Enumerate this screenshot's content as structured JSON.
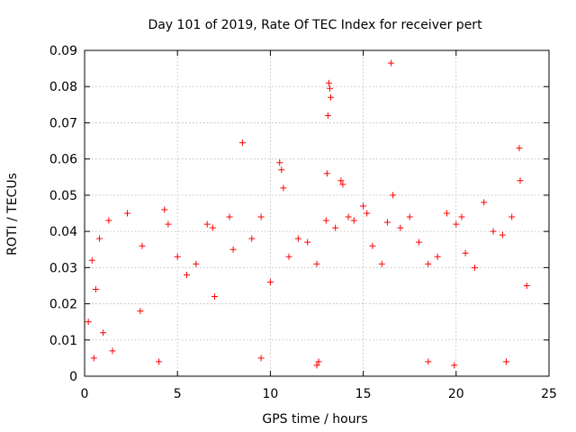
{
  "chart_data": {
    "type": "scatter",
    "title": "Day 101 of 2019, Rate Of TEC Index for receiver pert",
    "xlabel": "GPS time / hours",
    "ylabel": "ROTI / TECUs",
    "xlim": [
      0,
      25
    ],
    "ylim": [
      0,
      0.09
    ],
    "x_ticks": [
      "0",
      "5",
      "10",
      "15",
      "20",
      "25"
    ],
    "y_ticks": [
      "0",
      "0.01",
      "0.02",
      "0.03",
      "0.04",
      "0.05",
      "0.06",
      "0.07",
      "0.08",
      "0.09"
    ],
    "grid": true,
    "marker": "+",
    "color": "#ff0000",
    "series": [
      {
        "points": [
          [
            0.2,
            0.015
          ],
          [
            0.4,
            0.032
          ],
          [
            0.6,
            0.024
          ],
          [
            0.8,
            0.038
          ],
          [
            1.0,
            0.012
          ],
          [
            1.3,
            0.043
          ],
          [
            2.3,
            0.045
          ],
          [
            3.0,
            0.018
          ],
          [
            3.1,
            0.036
          ],
          [
            4.3,
            0.046
          ],
          [
            4.5,
            0.042
          ],
          [
            5.0,
            0.033
          ],
          [
            5.5,
            0.028
          ],
          [
            6.0,
            0.031
          ],
          [
            6.6,
            0.042
          ],
          [
            6.9,
            0.041
          ],
          [
            7.0,
            0.022
          ],
          [
            7.8,
            0.044
          ],
          [
            8.0,
            0.035
          ],
          [
            8.5,
            0.0645
          ],
          [
            9.0,
            0.038
          ],
          [
            9.5,
            0.044
          ],
          [
            10.0,
            0.026
          ],
          [
            10.5,
            0.059
          ],
          [
            10.6,
            0.057
          ],
          [
            10.7,
            0.052
          ],
          [
            11.0,
            0.033
          ],
          [
            11.5,
            0.038
          ],
          [
            12.0,
            0.037
          ],
          [
            12.5,
            0.031
          ],
          [
            13.0,
            0.043
          ],
          [
            13.05,
            0.056
          ],
          [
            13.15,
            0.081
          ],
          [
            13.2,
            0.0795
          ],
          [
            13.25,
            0.077
          ],
          [
            13.1,
            0.072
          ],
          [
            13.5,
            0.041
          ],
          [
            13.8,
            0.054
          ],
          [
            13.9,
            0.053
          ],
          [
            14.2,
            0.044
          ],
          [
            14.5,
            0.043
          ],
          [
            15.0,
            0.047
          ],
          [
            15.2,
            0.045
          ],
          [
            15.5,
            0.036
          ],
          [
            16.0,
            0.031
          ],
          [
            16.3,
            0.0425
          ],
          [
            16.5,
            0.0865
          ],
          [
            16.6,
            0.05
          ],
          [
            17.0,
            0.041
          ],
          [
            17.5,
            0.044
          ],
          [
            18.0,
            0.037
          ],
          [
            18.5,
            0.031
          ],
          [
            19.0,
            0.033
          ],
          [
            19.5,
            0.045
          ],
          [
            20.0,
            0.042
          ],
          [
            20.3,
            0.044
          ],
          [
            20.5,
            0.034
          ],
          [
            21.0,
            0.03
          ],
          [
            21.5,
            0.048
          ],
          [
            22.0,
            0.04
          ],
          [
            22.5,
            0.039
          ],
          [
            23.0,
            0.044
          ],
          [
            23.4,
            0.063
          ],
          [
            23.45,
            0.054
          ],
          [
            23.8,
            0.025
          ],
          [
            0.5,
            0.005
          ],
          [
            1.5,
            0.007
          ],
          [
            4.0,
            0.004
          ],
          [
            9.5,
            0.005
          ],
          [
            12.5,
            0.003
          ],
          [
            12.6,
            0.004
          ],
          [
            18.5,
            0.004
          ],
          [
            19.9,
            0.003
          ],
          [
            22.7,
            0.004
          ]
        ]
      }
    ]
  }
}
